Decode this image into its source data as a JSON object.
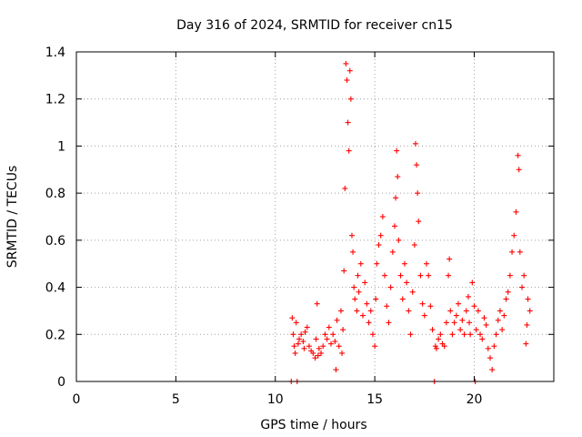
{
  "chart_data": {
    "type": "scatter",
    "title": "Day 316 of 2024, SRMTID for receiver cn15",
    "xlabel": "GPS time / hours",
    "ylabel": "SRMTID / TECUs",
    "xlim": [
      0,
      24
    ],
    "ylim": [
      0,
      1.4
    ],
    "xticks": [
      0,
      5,
      10,
      15,
      20
    ],
    "xtick_labels": [
      "0",
      "5",
      "10",
      "15",
      "20"
    ],
    "yticks": [
      0,
      0.2,
      0.4,
      0.6,
      0.8,
      1.0,
      1.2,
      1.4
    ],
    "ytick_labels": [
      "0",
      "0.2",
      "0.4",
      "0.6",
      "0.8",
      "1",
      "1.2",
      "1.4"
    ],
    "grid": true,
    "marker": "plus",
    "series_color": "#ff0000",
    "series": [
      {
        "name": "cn15",
        "points": [
          [
            10.8,
            0.0
          ],
          [
            10.85,
            0.27
          ],
          [
            10.9,
            0.2
          ],
          [
            10.95,
            0.15
          ],
          [
            11.0,
            0.12
          ],
          [
            11.05,
            0.25
          ],
          [
            11.1,
            0.0
          ],
          [
            11.15,
            0.16
          ],
          [
            11.2,
            0.18
          ],
          [
            11.3,
            0.2
          ],
          [
            11.4,
            0.17
          ],
          [
            11.45,
            0.14
          ],
          [
            11.5,
            0.21
          ],
          [
            11.6,
            0.23
          ],
          [
            11.7,
            0.15
          ],
          [
            11.8,
            0.13
          ],
          [
            11.9,
            0.12
          ],
          [
            12.0,
            0.1
          ],
          [
            12.05,
            0.18
          ],
          [
            12.1,
            0.33
          ],
          [
            12.15,
            0.11
          ],
          [
            12.2,
            0.14
          ],
          [
            12.3,
            0.12
          ],
          [
            12.4,
            0.15
          ],
          [
            12.5,
            0.2
          ],
          [
            12.6,
            0.18
          ],
          [
            12.7,
            0.23
          ],
          [
            12.8,
            0.16
          ],
          [
            12.9,
            0.2
          ],
          [
            13.0,
            0.17
          ],
          [
            13.05,
            0.05
          ],
          [
            13.1,
            0.26
          ],
          [
            13.2,
            0.15
          ],
          [
            13.3,
            0.3
          ],
          [
            13.35,
            0.12
          ],
          [
            13.4,
            0.22
          ],
          [
            13.45,
            0.47
          ],
          [
            13.5,
            0.82
          ],
          [
            13.55,
            1.35
          ],
          [
            13.6,
            1.28
          ],
          [
            13.65,
            1.1
          ],
          [
            13.7,
            0.98
          ],
          [
            13.75,
            1.32
          ],
          [
            13.8,
            1.2
          ],
          [
            13.85,
            0.62
          ],
          [
            13.9,
            0.55
          ],
          [
            13.95,
            0.4
          ],
          [
            14.0,
            0.35
          ],
          [
            14.1,
            0.3
          ],
          [
            14.15,
            0.45
          ],
          [
            14.2,
            0.38
          ],
          [
            14.3,
            0.5
          ],
          [
            14.4,
            0.28
          ],
          [
            14.5,
            0.42
          ],
          [
            14.6,
            0.33
          ],
          [
            14.7,
            0.25
          ],
          [
            14.8,
            0.3
          ],
          [
            14.9,
            0.2
          ],
          [
            15.0,
            0.15
          ],
          [
            15.05,
            0.35
          ],
          [
            15.1,
            0.5
          ],
          [
            15.2,
            0.58
          ],
          [
            15.3,
            0.62
          ],
          [
            15.4,
            0.7
          ],
          [
            15.5,
            0.45
          ],
          [
            15.6,
            0.32
          ],
          [
            15.7,
            0.25
          ],
          [
            15.8,
            0.4
          ],
          [
            15.9,
            0.55
          ],
          [
            16.0,
            0.66
          ],
          [
            16.05,
            0.78
          ],
          [
            16.1,
            0.98
          ],
          [
            16.15,
            0.87
          ],
          [
            16.2,
            0.6
          ],
          [
            16.3,
            0.45
          ],
          [
            16.4,
            0.35
          ],
          [
            16.5,
            0.5
          ],
          [
            16.6,
            0.42
          ],
          [
            16.7,
            0.3
          ],
          [
            16.8,
            0.2
          ],
          [
            16.9,
            0.38
          ],
          [
            17.0,
            0.58
          ],
          [
            17.05,
            1.01
          ],
          [
            17.1,
            0.92
          ],
          [
            17.15,
            0.8
          ],
          [
            17.2,
            0.68
          ],
          [
            17.3,
            0.45
          ],
          [
            17.4,
            0.33
          ],
          [
            17.5,
            0.28
          ],
          [
            17.6,
            0.5
          ],
          [
            17.7,
            0.45
          ],
          [
            17.8,
            0.32
          ],
          [
            17.9,
            0.22
          ],
          [
            18.0,
            0.0
          ],
          [
            18.05,
            0.15
          ],
          [
            18.1,
            0.14
          ],
          [
            18.2,
            0.18
          ],
          [
            18.3,
            0.2
          ],
          [
            18.4,
            0.16
          ],
          [
            18.5,
            0.15
          ],
          [
            18.6,
            0.25
          ],
          [
            18.7,
            0.45
          ],
          [
            18.75,
            0.52
          ],
          [
            18.8,
            0.3
          ],
          [
            18.9,
            0.2
          ],
          [
            19.0,
            0.25
          ],
          [
            19.1,
            0.28
          ],
          [
            19.2,
            0.33
          ],
          [
            19.3,
            0.22
          ],
          [
            19.4,
            0.26
          ],
          [
            19.5,
            0.2
          ],
          [
            19.6,
            0.3
          ],
          [
            19.7,
            0.36
          ],
          [
            19.75,
            0.25
          ],
          [
            19.8,
            0.2
          ],
          [
            19.9,
            0.42
          ],
          [
            20.0,
            0.32
          ],
          [
            20.05,
            0.0
          ],
          [
            20.1,
            0.22
          ],
          [
            20.2,
            0.3
          ],
          [
            20.3,
            0.2
          ],
          [
            20.4,
            0.18
          ],
          [
            20.5,
            0.27
          ],
          [
            20.6,
            0.24
          ],
          [
            20.7,
            0.14
          ],
          [
            20.8,
            0.1
          ],
          [
            20.9,
            0.05
          ],
          [
            21.0,
            0.15
          ],
          [
            21.1,
            0.2
          ],
          [
            21.2,
            0.26
          ],
          [
            21.3,
            0.3
          ],
          [
            21.4,
            0.22
          ],
          [
            21.5,
            0.28
          ],
          [
            21.6,
            0.35
          ],
          [
            21.7,
            0.38
          ],
          [
            21.8,
            0.45
          ],
          [
            21.9,
            0.55
          ],
          [
            22.0,
            0.62
          ],
          [
            22.1,
            0.72
          ],
          [
            22.2,
            0.96
          ],
          [
            22.25,
            0.9
          ],
          [
            22.3,
            0.55
          ],
          [
            22.4,
            0.4
          ],
          [
            22.5,
            0.45
          ],
          [
            22.6,
            0.16
          ],
          [
            22.65,
            0.24
          ],
          [
            22.7,
            0.35
          ],
          [
            22.8,
            0.3
          ]
        ]
      }
    ]
  }
}
